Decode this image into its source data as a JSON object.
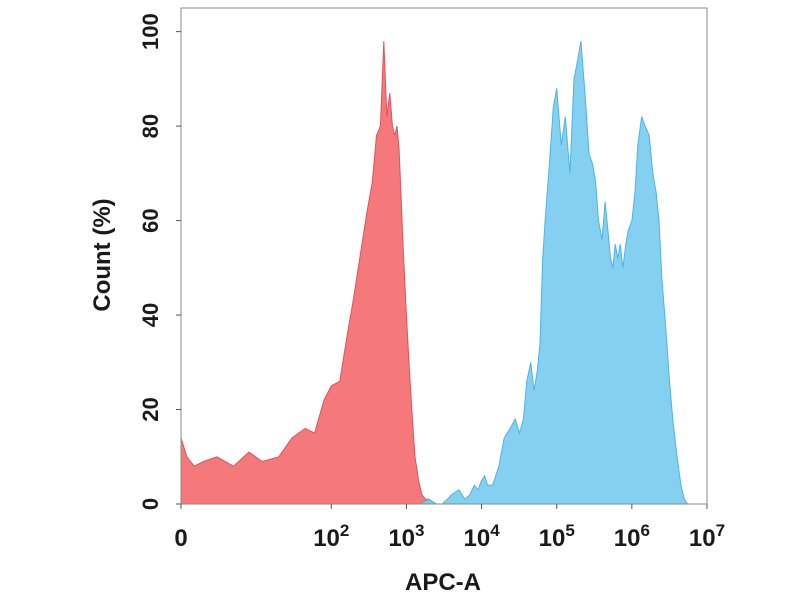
{
  "chart_data": {
    "type": "area",
    "title": "",
    "xlabel": "APC-A",
    "ylabel": "Count  (%)",
    "x_scale": "log",
    "xlim": [
      1,
      10000000
    ],
    "ylim": [
      0,
      105
    ],
    "grid": false,
    "x_ticks": [
      {
        "value": 1,
        "base": "0",
        "exp": ""
      },
      {
        "value": 100,
        "base": "10",
        "exp": "2"
      },
      {
        "value": 1000,
        "base": "10",
        "exp": "3"
      },
      {
        "value": 10000,
        "base": "10",
        "exp": "4"
      },
      {
        "value": 100000,
        "base": "10",
        "exp": "5"
      },
      {
        "value": 1000000,
        "base": "10",
        "exp": "6"
      },
      {
        "value": 10000000,
        "base": "10",
        "exp": "7"
      }
    ],
    "y_ticks": [
      {
        "value": 0,
        "label": "0"
      },
      {
        "value": 20,
        "label": "20"
      },
      {
        "value": 40,
        "label": "40"
      },
      {
        "value": 60,
        "label": "60"
      },
      {
        "value": 80,
        "label": "80"
      },
      {
        "value": 100,
        "label": "100"
      }
    ],
    "series": [
      {
        "color": "#f47274",
        "stroke": "#d9555a",
        "x": [
          1,
          1.2,
          1.5,
          2,
          3,
          5,
          8,
          12,
          20,
          30,
          45,
          60,
          80,
          100,
          130,
          160,
          200,
          250,
          300,
          350,
          400,
          450,
          500,
          550,
          600,
          650,
          700,
          750,
          800,
          850,
          900,
          1000,
          1100,
          1200,
          1300,
          1450,
          1600,
          1800,
          2000,
          2200,
          2500
        ],
        "values": [
          14,
          10,
          8,
          9,
          10,
          8,
          11,
          9,
          10,
          14,
          16,
          15,
          22,
          25,
          26,
          35,
          44,
          54,
          62,
          68,
          78,
          80,
          98,
          82,
          87,
          80,
          78,
          80,
          75,
          65,
          55,
          40,
          28,
          18,
          10,
          5,
          2,
          1,
          1,
          0.5,
          0
        ]
      },
      {
        "color": "#7dcdf0",
        "stroke": "#4fb3e3",
        "x": [
          1500,
          2000,
          2500,
          3000,
          3500,
          4000,
          5000,
          6000,
          7000,
          8000,
          9000,
          10000,
          11000,
          12000,
          14000,
          17000,
          20000,
          24000,
          28000,
          32000,
          36000,
          40000,
          45000,
          50000,
          55000,
          60000,
          65000,
          70000,
          80000,
          90000,
          100000,
          115000,
          130000,
          150000,
          170000,
          190000,
          210000,
          240000,
          270000,
          300000,
          330000,
          360000,
          400000,
          440000,
          480000,
          520000,
          560000,
          600000,
          650000,
          700000,
          760000,
          830000,
          900000,
          1000000,
          1100000,
          1200000,
          1350000,
          1500000,
          1700000,
          1900000,
          2100000,
          2300000,
          2500000,
          2800000,
          3100000,
          3500000,
          4000000,
          4500000,
          5000000,
          5500000,
          6000000
        ],
        "values": [
          0,
          1,
          0,
          0,
          1,
          2,
          3,
          1,
          2,
          4,
          3,
          5,
          6,
          4,
          4,
          8,
          14,
          16,
          18,
          15,
          18,
          26,
          30,
          24,
          28,
          34,
          52,
          60,
          72,
          84,
          88,
          76,
          82,
          70,
          90,
          94,
          98,
          86,
          74,
          72,
          68,
          60,
          56,
          64,
          58,
          52,
          50,
          55,
          52,
          55,
          50,
          55,
          58,
          60,
          66,
          76,
          82,
          80,
          78,
          70,
          66,
          60,
          48,
          38,
          28,
          18,
          10,
          4,
          1,
          0,
          0
        ]
      }
    ]
  }
}
